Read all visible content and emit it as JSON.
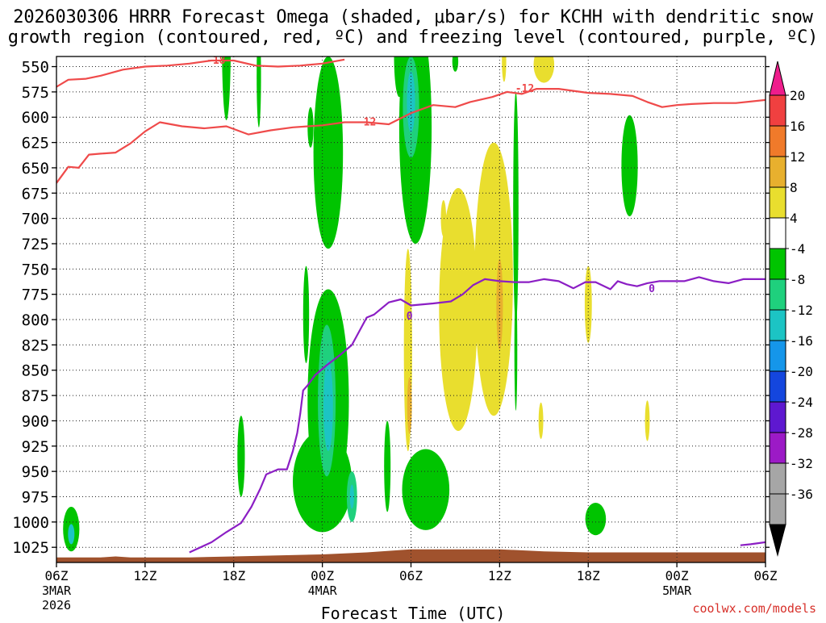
{
  "title_line1": "2026030306 HRRR Forecast Omega (shaded, μbar/s) for KCHH with dendritic snow",
  "title_line2": "growth region (contoured, red, ºC) and freezing level (contoured, purple, ºC)",
  "credit": "coolwx.com/models",
  "chart_data": {
    "type": "heatmap",
    "xlabel": "Forecast Time (UTC)",
    "ylabel": "",
    "x_ticks": [
      {
        "hour": 0,
        "label": "06Z",
        "sub1": "3MAR",
        "sub2": "2026"
      },
      {
        "hour": 6,
        "label": "12Z",
        "sub1": "",
        "sub2": ""
      },
      {
        "hour": 12,
        "label": "18Z",
        "sub1": "",
        "sub2": ""
      },
      {
        "hour": 18,
        "label": "00Z",
        "sub1": "4MAR",
        "sub2": ""
      },
      {
        "hour": 24,
        "label": "06Z",
        "sub1": "",
        "sub2": ""
      },
      {
        "hour": 30,
        "label": "12Z",
        "sub1": "",
        "sub2": ""
      },
      {
        "hour": 36,
        "label": "18Z",
        "sub1": "",
        "sub2": ""
      },
      {
        "hour": 42,
        "label": "00Z",
        "sub1": "5MAR",
        "sub2": ""
      },
      {
        "hour": 48,
        "label": "06Z",
        "sub1": "",
        "sub2": ""
      }
    ],
    "xlim": [
      0,
      48
    ],
    "y_ticks": [
      550,
      575,
      600,
      625,
      650,
      675,
      700,
      725,
      750,
      775,
      800,
      825,
      850,
      875,
      900,
      925,
      950,
      975,
      1000,
      1025
    ],
    "ylim": [
      540,
      1040
    ],
    "colorbar": {
      "labels": [
        "20",
        "16",
        "12",
        "8",
        "4",
        "-4",
        "-8",
        "-12",
        "-16",
        "-20",
        "-24",
        "-28",
        "-32",
        "-36"
      ],
      "colors": [
        "#ef1d8c",
        "#f04040",
        "#f07a2a",
        "#e8b02e",
        "#e9de2e",
        "#ffffff",
        "#00c400",
        "#1fd07d",
        "#1cc4c4",
        "#1596ea",
        "#1446de",
        "#5e18d0",
        "#9c1ac6",
        "#a6a6a6"
      ],
      "low_color": "#000000"
    },
    "omega_features": [
      {
        "t": 1.0,
        "p": 1007,
        "dt": 0.55,
        "dp": 22,
        "color": "#00c400"
      },
      {
        "t": 1.0,
        "p": 1012,
        "dt": 0.22,
        "dp": 10,
        "color": "#1cc4c4"
      },
      {
        "t": 11.5,
        "p": 525,
        "dt": 0.3,
        "dp": 78,
        "color": "#00c400"
      },
      {
        "t": 13.7,
        "p": 560,
        "dt": 0.15,
        "dp": 50,
        "color": "#00c400"
      },
      {
        "t": 12.5,
        "p": 935,
        "dt": 0.25,
        "dp": 40,
        "color": "#00c400"
      },
      {
        "t": 16.9,
        "p": 795,
        "dt": 0.2,
        "dp": 48,
        "color": "#00c400"
      },
      {
        "t": 17.2,
        "p": 610,
        "dt": 0.2,
        "dp": 20,
        "color": "#00c400"
      },
      {
        "t": 18.4,
        "p": 635,
        "dt": 1.0,
        "dp": 95,
        "color": "#00c400"
      },
      {
        "t": 18.4,
        "p": 880,
        "dt": 1.4,
        "dp": 110,
        "color": "#00c400"
      },
      {
        "t": 18.0,
        "p": 960,
        "dt": 2.0,
        "dp": 50,
        "color": "#00c400"
      },
      {
        "t": 18.3,
        "p": 880,
        "dt": 0.6,
        "dp": 75,
        "color": "#1fd07d"
      },
      {
        "t": 18.4,
        "p": 885,
        "dt": 0.32,
        "dp": 45,
        "color": "#1cc4c4"
      },
      {
        "t": 20.0,
        "p": 975,
        "dt": 0.35,
        "dp": 25,
        "color": "#1fd07d"
      },
      {
        "t": 20.0,
        "p": 975,
        "dt": 0.14,
        "dp": 12,
        "color": "#1cc4c4"
      },
      {
        "t": 22.4,
        "p": 945,
        "dt": 0.22,
        "dp": 45,
        "color": "#00c400"
      },
      {
        "t": 23.2,
        "p": 540,
        "dt": 0.35,
        "dp": 40,
        "color": "#00c400"
      },
      {
        "t": 24.3,
        "p": 610,
        "dt": 1.1,
        "dp": 115,
        "color": "#00c400"
      },
      {
        "t": 24.0,
        "p": 590,
        "dt": 0.55,
        "dp": 50,
        "color": "#1fd07d"
      },
      {
        "t": 24.0,
        "p": 585,
        "dt": 0.28,
        "dp": 30,
        "color": "#1cc4c4"
      },
      {
        "t": 25.0,
        "p": 968,
        "dt": 1.6,
        "dp": 40,
        "color": "#00c400"
      },
      {
        "t": 27.0,
        "p": 545,
        "dt": 0.2,
        "dp": 10,
        "color": "#00c400"
      },
      {
        "t": 31.1,
        "p": 690,
        "dt": 0.18,
        "dp": 115,
        "color": "#00c400"
      },
      {
        "t": 31.1,
        "p": 830,
        "dt": 0.1,
        "dp": 60,
        "color": "#00c400"
      },
      {
        "t": 38.8,
        "p": 648,
        "dt": 0.55,
        "dp": 50,
        "color": "#00c400"
      },
      {
        "t": 36.5,
        "p": 997,
        "dt": 0.7,
        "dp": 16,
        "color": "#00c400"
      },
      {
        "t": 23.8,
        "p": 830,
        "dt": 0.28,
        "dp": 100,
        "color": "#e9de2e"
      },
      {
        "t": 23.9,
        "p": 885,
        "dt": 0.16,
        "dp": 28,
        "color": "#e8b02e"
      },
      {
        "t": 26.2,
        "p": 700,
        "dt": 0.18,
        "dp": 18,
        "color": "#e9de2e"
      },
      {
        "t": 27.2,
        "p": 790,
        "dt": 1.3,
        "dp": 120,
        "color": "#e9de2e"
      },
      {
        "t": 29.6,
        "p": 760,
        "dt": 1.3,
        "dp": 135,
        "color": "#e9de2e"
      },
      {
        "t": 30.0,
        "p": 785,
        "dt": 0.22,
        "dp": 45,
        "color": "#e8b02e"
      },
      {
        "t": 30.3,
        "p": 545,
        "dt": 0.15,
        "dp": 20,
        "color": "#e9de2e"
      },
      {
        "t": 33.0,
        "p": 548,
        "dt": 0.7,
        "dp": 18,
        "color": "#e9de2e"
      },
      {
        "t": 32.8,
        "p": 900,
        "dt": 0.16,
        "dp": 18,
        "color": "#e9de2e"
      },
      {
        "t": 36.0,
        "p": 785,
        "dt": 0.24,
        "dp": 38,
        "color": "#e9de2e"
      },
      {
        "t": 40.0,
        "p": 900,
        "dt": 0.16,
        "dp": 20,
        "color": "#e9de2e"
      }
    ],
    "contour_minus12": {
      "label": "-12",
      "color": "#ef4a4a",
      "segments": [
        {
          "t": [
            0,
            0.8,
            1.5,
            2.2,
            3,
            4,
            5,
            6,
            7,
            8.5,
            10,
            11.5,
            13,
            14.5,
            16,
            18,
            19.5,
            21,
            22.5,
            24,
            25.5,
            27,
            28,
            29.5,
            30.5,
            31.5,
            32.5,
            34,
            36,
            37.5,
            39,
            40,
            41,
            42,
            43,
            44.5,
            46,
            48
          ],
          "p": [
            665,
            649,
            650,
            637,
            636,
            635,
            626,
            614,
            605,
            609,
            611,
            609,
            617,
            613,
            610,
            608,
            605,
            605,
            607,
            596,
            588,
            590,
            585,
            580,
            575,
            577,
            572,
            572,
            576,
            577,
            579,
            585,
            590,
            588,
            587,
            586,
            586,
            583
          ]
        }
      ],
      "labels_at": [
        {
          "t": 21.0,
          "p": 604
        },
        {
          "t": 31.7,
          "p": 571
        }
      ]
    },
    "contour_minus18": {
      "label": "-18",
      "color": "#ef4a4a",
      "segments": [
        {
          "t": [
            0,
            0.8,
            2,
            3,
            4.5,
            6,
            7.5,
            9,
            10.5,
            12,
            13.5,
            15,
            16.5,
            18,
            19.5
          ],
          "p": [
            570,
            563,
            562,
            559,
            553,
            550,
            549,
            547,
            544,
            544,
            549,
            550,
            549,
            547,
            543
          ]
        }
      ],
      "labels_at": [
        {
          "t": 10.8,
          "p": 543
        }
      ]
    },
    "contour_0": {
      "label": "0",
      "color": "#8b1ec4",
      "segments": [
        {
          "t": [
            9,
            10.5,
            11.5,
            12.5,
            13.2,
            13.8,
            14.2,
            15,
            15.6,
            16,
            16.3,
            16.5,
            16.7,
            17,
            17.5,
            18.3,
            19.2,
            20,
            21,
            21.5,
            22.5,
            23.3,
            24,
            25.5,
            26.7,
            27.5,
            28.2,
            29,
            30,
            31,
            32,
            33,
            34,
            35,
            35.8,
            36.5,
            37.5,
            38,
            38.6,
            39.3,
            40,
            40.8,
            41.5,
            42.5,
            43.5,
            44.5,
            45.5,
            46.5,
            48
          ],
          "p": [
            1030,
            1020,
            1010,
            1001,
            985,
            967,
            953,
            948,
            948,
            930,
            912,
            893,
            870,
            865,
            855,
            845,
            835,
            825,
            798,
            795,
            783,
            780,
            786,
            784,
            782,
            775,
            766,
            760,
            762,
            763,
            763,
            760,
            762,
            769,
            763,
            763,
            770,
            762,
            765,
            767,
            764,
            762,
            762,
            762,
            758,
            762,
            764,
            760,
            760
          ]
        },
        {
          "t": [
            46.3,
            47,
            48
          ],
          "p": [
            1023,
            1022,
            1020
          ]
        }
      ],
      "labels_at": [
        {
          "t": 23.9,
          "p": 796
        },
        {
          "t": 40.3,
          "p": 769
        }
      ]
    },
    "terrain": {
      "color": "#a0522d",
      "t": [
        0,
        3,
        4,
        5,
        9,
        12,
        15,
        18,
        21,
        24,
        27,
        30,
        33,
        36,
        39,
        42,
        45,
        48
      ],
      "p": [
        1035,
        1035,
        1034,
        1035,
        1035,
        1034,
        1033,
        1032,
        1030,
        1027,
        1027,
        1027,
        1029,
        1030,
        1030,
        1030,
        1030,
        1030
      ]
    }
  }
}
